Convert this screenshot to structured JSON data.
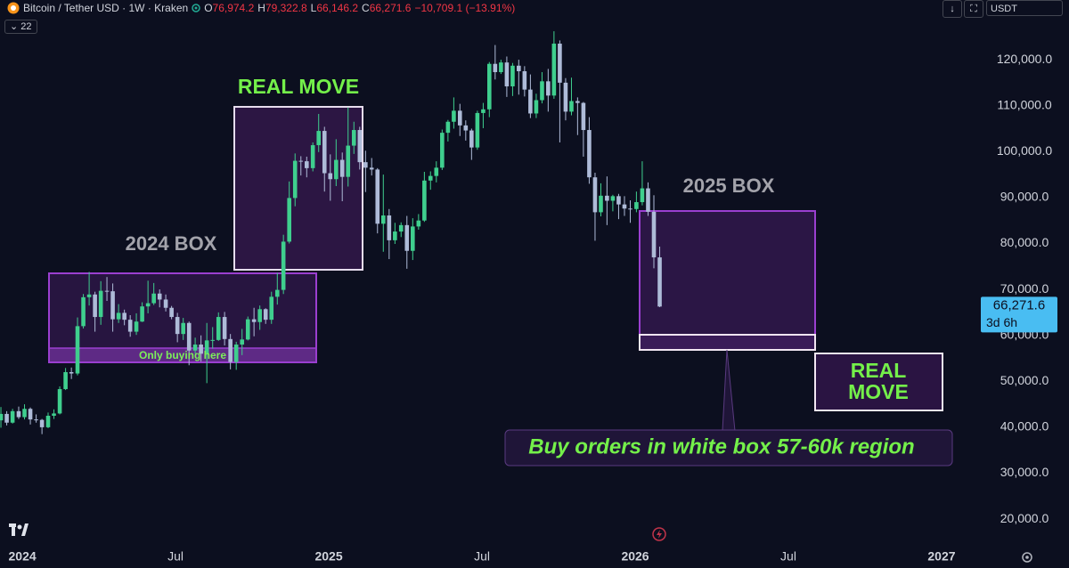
{
  "header": {
    "symbol": "Bitcoin / Tether USD · 1W · Kraken",
    "ohlc": [
      {
        "label": "O",
        "value": "76,974.2"
      },
      {
        "label": "H",
        "value": "79,322.8"
      },
      {
        "label": "L",
        "value": "66,146.2"
      },
      {
        "label": "C",
        "value": "66,271.6"
      }
    ],
    "change": "−10,709.1 (−13.91%)",
    "indicator_count": "22",
    "currency": "USDT"
  },
  "chart_data": {
    "type": "candlestick",
    "x": [
      2023.93,
      2023.949,
      2023.968,
      2023.988,
      2024.007,
      2024.026,
      2024.045,
      2024.064,
      2024.084,
      2024.103,
      2024.122,
      2024.141,
      2024.16,
      2024.18,
      2024.199,
      2024.218,
      2024.237,
      2024.256,
      2024.276,
      2024.295,
      2024.314,
      2024.333,
      2024.352,
      2024.372,
      2024.391,
      2024.41,
      2024.429,
      2024.448,
      2024.468,
      2024.487,
      2024.506,
      2024.525,
      2024.544,
      2024.564,
      2024.583,
      2024.602,
      2024.621,
      2024.64,
      2024.66,
      2024.679,
      2024.698,
      2024.717,
      2024.736,
      2024.756,
      2024.775,
      2024.794,
      2024.813,
      2024.832,
      2024.852,
      2024.871,
      2024.89,
      2024.909,
      2024.928,
      2024.948,
      2024.967,
      2024.986,
      2025.005,
      2025.024,
      2025.044,
      2025.063,
      2025.082,
      2025.101,
      2025.12,
      2025.14,
      2025.159,
      2025.178,
      2025.197,
      2025.216,
      2025.236,
      2025.255,
      2025.274,
      2025.293,
      2025.312,
      2025.332,
      2025.351,
      2025.37,
      2025.389,
      2025.408,
      2025.428,
      2025.447,
      2025.466,
      2025.485,
      2025.504,
      2025.524,
      2025.543,
      2025.562,
      2025.581,
      2025.6,
      2025.62,
      2025.639,
      2025.658,
      2025.677,
      2025.696,
      2025.716,
      2025.735,
      2025.754,
      2025.773,
      2025.792,
      2025.812,
      2025.831,
      2025.85,
      2025.869,
      2025.888,
      2025.908,
      2025.927,
      2025.946,
      2025.965,
      2025.984,
      2026.004,
      2026.023,
      2026.042,
      2026.061,
      2026.08
    ],
    "open": [
      41500,
      42900,
      41000,
      43500,
      42200,
      44000,
      41700,
      41600,
      40000,
      42500,
      43000,
      48300,
      52000,
      51700,
      62000,
      68300,
      68900,
      64000,
      69700,
      69600,
      63500,
      64900,
      63400,
      60800,
      63000,
      66300,
      67000,
      69100,
      67800,
      66000,
      64000,
      60300,
      62700,
      56700,
      58000,
      56000,
      58900,
      59000,
      64000,
      59200,
      54200,
      58000,
      59100,
      63500,
      62900,
      65700,
      63400,
      68400,
      69900,
      80400,
      89900,
      98000,
      97900,
      96400,
      101400,
      104500,
      95300,
      94000,
      98200,
      94500,
      101300,
      104700,
      97700,
      96500,
      96100,
      84300,
      86100,
      80700,
      82600,
      84000,
      78400,
      83700,
      85000,
      93700,
      94700,
      96500,
      104100,
      106500,
      108900,
      105700,
      104600,
      100900,
      108400,
      109200,
      119100,
      117300,
      119400,
      114200,
      118700,
      117500,
      113500,
      108300,
      111200,
      115300,
      112200,
      123500,
      115000,
      108700,
      111000,
      110600,
      104700,
      94400,
      86800,
      90400,
      89300,
      90300,
      88500,
      87600,
      87500,
      89000,
      92000,
      86900,
      76974.2
    ],
    "high": [
      44400,
      43500,
      44000,
      44500,
      45000,
      44300,
      42800,
      41800,
      43200,
      43900,
      48900,
      52900,
      53000,
      63900,
      69000,
      73800,
      69500,
      71800,
      72700,
      71300,
      66800,
      65600,
      64400,
      64800,
      67200,
      71900,
      71400,
      70000,
      68900,
      66400,
      64900,
      63800,
      63000,
      59500,
      60000,
      62700,
      61800,
      65000,
      65100,
      60300,
      58600,
      61400,
      64100,
      66000,
      66500,
      65900,
      69500,
      73600,
      81900,
      93500,
      99600,
      99000,
      98900,
      102000,
      108200,
      105400,
      99400,
      102700,
      99800,
      109600,
      106500,
      105400,
      100200,
      98600,
      96400,
      95000,
      87500,
      84500,
      84600,
      86000,
      85500,
      86400,
      95600,
      95700,
      97900,
      104800,
      106900,
      111800,
      110400,
      106800,
      105000,
      108900,
      110600,
      119500,
      123200,
      120000,
      120700,
      119300,
      120000,
      118600,
      116800,
      112600,
      117300,
      118000,
      126200,
      124200,
      116000,
      116100,
      111800,
      110800,
      107500,
      95400,
      93100,
      94600,
      90600,
      90800,
      90300,
      89400,
      91300,
      97900,
      93300,
      90500,
      79322.8
    ],
    "low": [
      39900,
      40400,
      40800,
      41800,
      41700,
      40600,
      41000,
      38500,
      39800,
      41800,
      42800,
      48100,
      50500,
      51300,
      61500,
      66500,
      60800,
      62300,
      67500,
      60800,
      62700,
      62200,
      59700,
      60100,
      62900,
      64800,
      66600,
      66100,
      65200,
      63500,
      58500,
      59000,
      53500,
      56000,
      54300,
      49600,
      57100,
      58800,
      57800,
      52600,
      52500,
      55700,
      58900,
      59800,
      61200,
      62500,
      62500,
      66700,
      69000,
      80000,
      88100,
      94800,
      94400,
      95700,
      99900,
      91300,
      89300,
      92500,
      89200,
      92400,
      99500,
      96100,
      91200,
      94800,
      82200,
      78200,
      76600,
      79900,
      81400,
      74500,
      76400,
      83000,
      84700,
      91700,
      93300,
      96000,
      102200,
      105000,
      103400,
      102400,
      98200,
      100400,
      105100,
      107500,
      115700,
      116900,
      111900,
      112100,
      112400,
      112000,
      107300,
      107300,
      110500,
      108700,
      111500,
      102000,
      106800,
      107900,
      103600,
      98900,
      93000,
      80600,
      85900,
      84000,
      87000,
      85300,
      86000,
      84500,
      86800,
      88300,
      86000,
      74600,
      66146.2
    ],
    "close": [
      42900,
      41000,
      43500,
      42200,
      44000,
      41700,
      41600,
      40000,
      42500,
      43000,
      48300,
      52000,
      51700,
      62000,
      68300,
      68900,
      64000,
      69700,
      69600,
      63500,
      64900,
      63400,
      60800,
      63000,
      66300,
      67000,
      69100,
      67800,
      66000,
      64000,
      60300,
      62700,
      56700,
      58000,
      56000,
      58900,
      59000,
      64000,
      59200,
      54200,
      58000,
      59100,
      63500,
      62900,
      65700,
      63400,
      68400,
      69900,
      80400,
      89900,
      98000,
      97900,
      96400,
      101400,
      104500,
      95300,
      94000,
      98200,
      94500,
      101300,
      104700,
      97700,
      96500,
      96100,
      84300,
      86100,
      80700,
      82600,
      84000,
      78400,
      83700,
      85000,
      93700,
      94700,
      96500,
      104100,
      106500,
      108900,
      105700,
      104600,
      100900,
      108400,
      109200,
      119100,
      117300,
      119400,
      114200,
      118700,
      117500,
      113500,
      108300,
      111200,
      115300,
      112200,
      123500,
      115000,
      108700,
      111000,
      110600,
      104700,
      94400,
      86800,
      90400,
      89300,
      90300,
      88500,
      87600,
      87500,
      89000,
      92000,
      86900,
      76974.2,
      66271.6
    ],
    "up_color": "#3fcf8e",
    "down_color": "#aebbd8",
    "grid": false,
    "xlim": [
      2023.927,
      2027.096
    ],
    "ylim": [
      14400,
      133000
    ],
    "xticks": [
      {
        "value": 2024,
        "label": "2024"
      },
      {
        "value": 2024.5,
        "label": "Jul"
      },
      {
        "value": 2025,
        "label": "2025"
      },
      {
        "value": 2025.5,
        "label": "Jul"
      },
      {
        "value": 2026,
        "label": "2026"
      },
      {
        "value": 2026.5,
        "label": "Jul"
      },
      {
        "value": 2027,
        "label": "2027"
      }
    ],
    "yticks": [
      {
        "value": 20000,
        "label": "20,000.0"
      },
      {
        "value": 30000,
        "label": "30,000.0"
      },
      {
        "value": 40000,
        "label": "40,000.0"
      },
      {
        "value": 50000,
        "label": "50,000.0"
      },
      {
        "value": 60000,
        "label": "60,000.0"
      },
      {
        "value": 70000,
        "label": "70,000.0"
      },
      {
        "value": 80000,
        "label": "80,000.0"
      },
      {
        "value": 90000,
        "label": "90,000.0"
      },
      {
        "value": 100000,
        "label": "100,000.0"
      },
      {
        "value": 110000,
        "label": "110,000.0"
      },
      {
        "value": 120000,
        "label": "120,000.0"
      }
    ],
    "last_price_label": "66,271.6",
    "countdown": "3d 6h",
    "annotations": {
      "real_move_top": "REAL MOVE",
      "box_2024": "2024 BOX",
      "only_buying": "Only buying here",
      "box_2025": "2025 BOX",
      "real_move_right": [
        "REAL",
        "MOVE"
      ],
      "callout": "Buy orders in white box 57-60k region"
    }
  }
}
